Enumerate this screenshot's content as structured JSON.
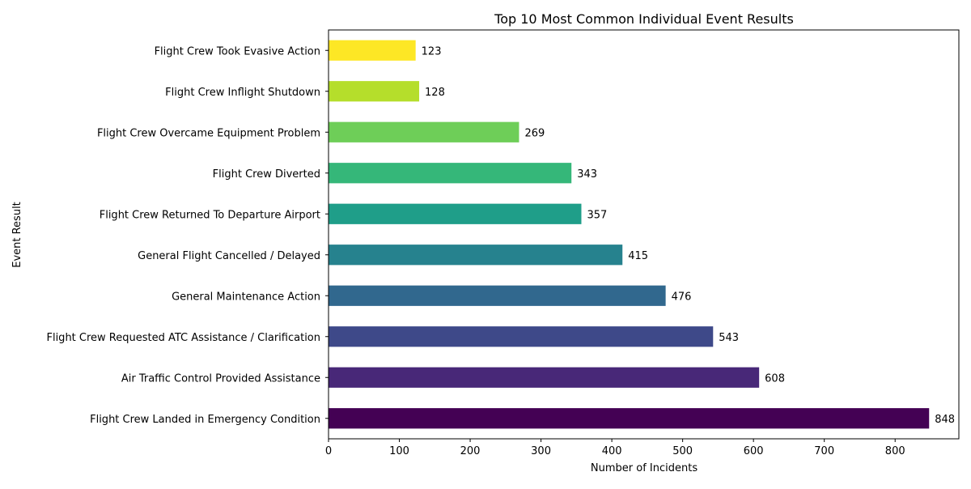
{
  "chart_data": {
    "type": "bar",
    "orientation": "horizontal",
    "title": "Top 10 Most Common Individual Event Results",
    "xlabel": "Number of Incidents",
    "ylabel": "Event Result",
    "xlim": [
      0,
      890
    ],
    "xticks": [
      0,
      100,
      200,
      300,
      400,
      500,
      600,
      700,
      800
    ],
    "grid": false,
    "colormap": "viridis",
    "categories": [
      "Flight Crew Landed in Emergency Condition",
      "Air Traffic Control Provided Assistance",
      "Flight Crew Requested ATC Assistance / Clarification",
      "General Maintenance Action",
      "General Flight Cancelled / Delayed",
      "Flight Crew Returned To Departure Airport",
      "Flight Crew Diverted",
      "Flight Crew Overcame Equipment Problem",
      "Flight Crew Inflight Shutdown",
      "Flight Crew Took Evasive Action"
    ],
    "values": [
      848,
      608,
      543,
      476,
      415,
      357,
      343,
      269,
      128,
      123
    ],
    "colors": [
      "#440154",
      "#482878",
      "#3e4989",
      "#31688e",
      "#26828e",
      "#1f9e89",
      "#35b779",
      "#6ece58",
      "#b5de2b",
      "#fde725"
    ]
  }
}
